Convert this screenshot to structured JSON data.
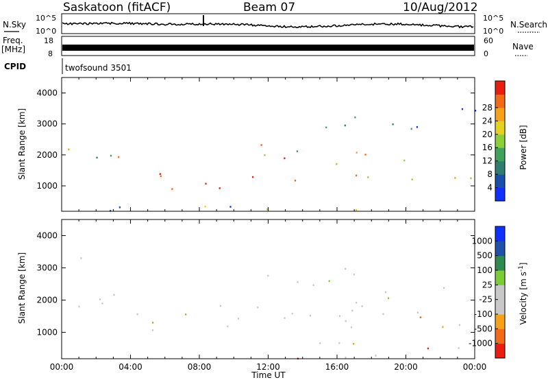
{
  "header": {
    "station": "Saskatoon (fitACF)",
    "beam": "Beam 07",
    "date": "10/Aug/2012"
  },
  "top_panels": {
    "nsky_label": "N.Sky",
    "nsky_ticks": [
      "10^5",
      "10^0"
    ],
    "nsearch_label": "N.Search",
    "nsearch_ticks": [
      "10^5",
      "10^0"
    ],
    "freq_label": "Freq.",
    "freq_unit": "[MHz]",
    "freq_ticks": [
      "18",
      "8"
    ],
    "nave_label": "Nave",
    "nave_ticks": [
      "60",
      "0"
    ],
    "cpid_label": "CPID",
    "cpid_value": "twofsound 3501"
  },
  "colors": {
    "power_scale": [
      "#1030ff",
      "#1a4fa8",
      "#2e7d6e",
      "#3fa25a",
      "#8ccf3a",
      "#e6d21e",
      "#f5a21a",
      "#f06a1a",
      "#e81e10"
    ],
    "velocity_scale": [
      "#e81e10",
      "#f06a1a",
      "#f5a21a",
      "#c8c8c8",
      "#c8c8c8",
      "#7ccc3a",
      "#2e8a4e",
      "#2050a8",
      "#1030ff"
    ]
  },
  "chart_data": [
    {
      "type": "heatmap",
      "title": "Power",
      "ylabel": "Slant Range [km]",
      "colorbar_label": "Power [dB]",
      "colorbar_ticks": [
        "4",
        "8",
        "12",
        "16",
        "20",
        "24",
        "28"
      ],
      "yticks": [
        "1000",
        "2000",
        "3000",
        "4000"
      ],
      "ylim": [
        180,
        4500
      ],
      "xlim": [
        0,
        24
      ],
      "scatter_regions": [
        {
          "t0": 0.0,
          "t1": 3.5,
          "r0": 1500,
          "r1": 2900,
          "level": 0.55
        },
        {
          "t0": 2.5,
          "t1": 5.8,
          "r0": 1000,
          "r1": 1800,
          "level": 0.7
        },
        {
          "t0": 5.0,
          "t1": 7.3,
          "r0": 800,
          "r1": 1500,
          "level": 0.9
        },
        {
          "t0": 7.8,
          "t1": 9.9,
          "r0": 900,
          "r1": 1900,
          "level": 0.95
        },
        {
          "t0": 10.6,
          "t1": 11.5,
          "r0": 950,
          "r1": 1800,
          "level": 0.9
        },
        {
          "t0": 11.5,
          "t1": 13.5,
          "r0": 1300,
          "r1": 3200,
          "level": 0.75
        },
        {
          "t0": 13.5,
          "t1": 24.0,
          "r0": 1100,
          "r1": 2200,
          "level": 0.6
        },
        {
          "t0": 13.0,
          "t1": 24.0,
          "r0": 2800,
          "r1": 3600,
          "level": 0.2
        },
        {
          "t0": 0.0,
          "t1": 24.0,
          "r0": 180,
          "r1": 450,
          "level": 0.3
        }
      ]
    },
    {
      "type": "heatmap",
      "title": "Velocity",
      "ylabel": "Slant Range [km]",
      "xlabel": "Time UT",
      "colorbar_label": "Velocity [m s^-1]",
      "colorbar_ticks": [
        "-1000",
        "-500",
        "-100",
        "-25",
        "25",
        "100",
        "500",
        "1000"
      ],
      "yticks": [
        "1000",
        "2000",
        "3000",
        "4000"
      ],
      "xticks": [
        "00:00",
        "04:00",
        "08:00",
        "12:00",
        "16:00",
        "20:00",
        "00:00"
      ],
      "ylim": [
        180,
        4500
      ],
      "xlim": [
        0,
        24
      ],
      "scatter_regions": [
        {
          "t0": 0.0,
          "t1": 1.5,
          "r0": 2400,
          "r1": 3400,
          "level": 0.65
        },
        {
          "t0": 0.5,
          "t1": 6.0,
          "r0": 1500,
          "r1": 2400,
          "level": 0.45
        },
        {
          "t0": 4.0,
          "t1": 7.5,
          "r0": 800,
          "r1": 1600,
          "level": 0.5
        },
        {
          "t0": 7.5,
          "t1": 10.6,
          "r0": 1000,
          "r1": 2000,
          "level": 0.3
        },
        {
          "t0": 10.6,
          "t1": 11.5,
          "r0": 950,
          "r1": 1800,
          "level": 0.15
        },
        {
          "t0": 11.5,
          "t1": 24.0,
          "r0": 1000,
          "r1": 3000,
          "level": 0.45
        },
        {
          "t0": 8.0,
          "t1": 24.0,
          "r0": 180,
          "r1": 700,
          "level": 0.2
        }
      ]
    }
  ]
}
